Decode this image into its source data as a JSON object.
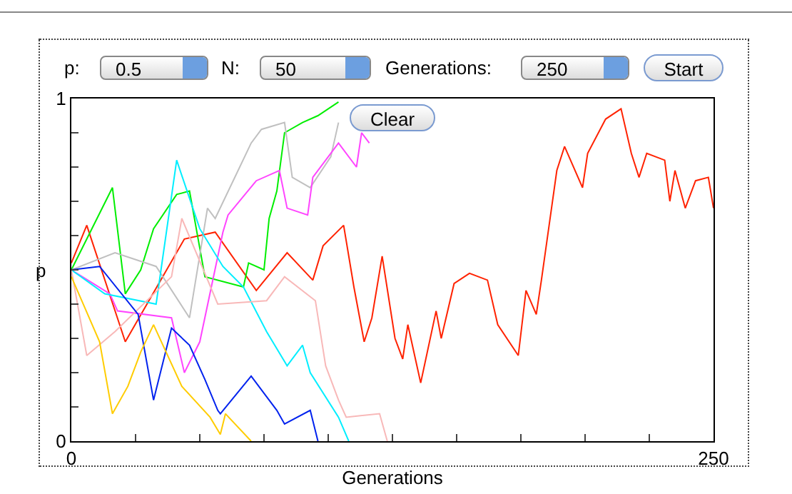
{
  "chart_data": {
    "type": "line",
    "xlabel": "Generations",
    "ylabel": "p",
    "xlim": [
      0,
      250
    ],
    "xticks": [
      0,
      {
        "value": 25,
        "label": null
      },
      {
        "value": 50,
        "label": null
      },
      {
        "value": 75,
        "label": null
      },
      {
        "value": 100,
        "label": null
      },
      {
        "value": 125,
        "label": null
      },
      {
        "value": 150,
        "label": null
      },
      {
        "value": 175,
        "label": null
      },
      {
        "value": 200,
        "label": null
      },
      {
        "value": 225,
        "label": null
      },
      250
    ],
    "ylim": [
      0,
      1
    ],
    "yticks": [
      0,
      {
        "value": 0.1,
        "label": null
      },
      {
        "value": 0.2,
        "label": null
      },
      {
        "value": 0.3,
        "label": null
      },
      {
        "value": 0.4,
        "label": null
      },
      {
        "value": 0.5,
        "label": null
      },
      {
        "value": 0.6,
        "label": null
      },
      {
        "value": 0.7,
        "label": null
      },
      {
        "value": 0.8,
        "label": null
      },
      {
        "value": 0.9,
        "label": null
      },
      1
    ],
    "grid": false,
    "marker": "none",
    "line_style": "solid",
    "annotations": [
      "p:",
      "0.5",
      "N:",
      "50",
      "Generations:",
      "250",
      "Start",
      "Clear"
    ],
    "series": [
      {
        "color": "#ff2200",
        "x": [
          0,
          6,
          21,
          44,
          56,
          72,
          84,
          94,
          98,
          106,
          110,
          114,
          117,
          121,
          126,
          129,
          131,
          136,
          142,
          144,
          149,
          155,
          162,
          166,
          174,
          177,
          181,
          183,
          189,
          192,
          199,
          201,
          208,
          214,
          218,
          221,
          224,
          231,
          233,
          235,
          239,
          243,
          248,
          250
        ],
        "values": [
          0.52,
          0.63,
          0.29,
          0.59,
          0.61,
          0.44,
          0.55,
          0.47,
          0.57,
          0.63,
          0.45,
          0.29,
          0.36,
          0.54,
          0.3,
          0.24,
          0.34,
          0.17,
          0.38,
          0.3,
          0.46,
          0.49,
          0.47,
          0.34,
          0.25,
          0.44,
          0.37,
          0.47,
          0.79,
          0.86,
          0.74,
          0.84,
          0.94,
          0.97,
          0.84,
          0.77,
          0.84,
          0.82,
          0.7,
          0.79,
          0.68,
          0.76,
          0.77,
          0.68
        ]
      },
      {
        "color": "#00ee00",
        "x": [
          0,
          16,
          21,
          27,
          32,
          41,
          46,
          52,
          67,
          69,
          75,
          77,
          80,
          83,
          90,
          96,
          104
        ],
        "values": [
          0.5,
          0.74,
          0.43,
          0.5,
          0.62,
          0.72,
          0.73,
          0.48,
          0.45,
          0.52,
          0.5,
          0.65,
          0.73,
          0.9,
          0.93,
          0.95,
          0.99
        ]
      },
      {
        "color": "#c0c0c0",
        "x": [
          0,
          17,
          33,
          46,
          53,
          56,
          63,
          70,
          74,
          83,
          86,
          93,
          101,
          104
        ],
        "values": [
          0.5,
          0.55,
          0.51,
          0.36,
          0.68,
          0.65,
          0.76,
          0.87,
          0.91,
          0.93,
          0.77,
          0.74,
          0.83,
          0.93
        ]
      },
      {
        "color": "#ff44ff",
        "x": [
          0,
          15,
          18,
          39,
          44,
          50,
          59,
          61,
          72,
          81,
          84,
          92,
          94,
          104,
          111,
          113,
          116
        ],
        "values": [
          0.5,
          0.43,
          0.38,
          0.36,
          0.2,
          0.29,
          0.61,
          0.66,
          0.76,
          0.79,
          0.68,
          0.66,
          0.77,
          0.87,
          0.8,
          0.9,
          0.87
        ]
      },
      {
        "color": "#00eeff",
        "x": [
          0,
          13,
          33,
          41,
          50,
          59,
          67,
          76,
          84,
          90,
          93,
          104,
          108
        ],
        "values": [
          0.5,
          0.43,
          0.4,
          0.82,
          0.62,
          0.51,
          0.45,
          0.32,
          0.22,
          0.28,
          0.2,
          0.07,
          0
        ]
      },
      {
        "color": "#f8b8b8",
        "x": [
          0,
          6,
          17,
          39,
          43,
          57,
          76,
          83,
          95,
          99,
          104,
          107,
          120,
          123
        ],
        "values": [
          0.5,
          0.25,
          0.32,
          0.48,
          0.65,
          0.4,
          0.41,
          0.48,
          0.41,
          0.22,
          0.12,
          0.07,
          0.08,
          0
        ]
      },
      {
        "color": "#0022ee",
        "x": [
          0,
          11,
          26,
          32,
          39,
          46,
          52,
          57,
          58,
          70,
          80,
          83,
          93,
          96
        ],
        "values": [
          0.5,
          0.51,
          0.37,
          0.12,
          0.33,
          0.28,
          0.18,
          0.09,
          0.08,
          0.19,
          0.09,
          0.05,
          0.09,
          0
        ]
      },
      {
        "color": "#ffcc00",
        "x": [
          0,
          11,
          16,
          22,
          27,
          32,
          43,
          54,
          58,
          60,
          70
        ],
        "values": [
          0.48,
          0.29,
          0.08,
          0.16,
          0.26,
          0.34,
          0.16,
          0.07,
          0.02,
          0.08,
          0
        ]
      }
    ]
  }
}
